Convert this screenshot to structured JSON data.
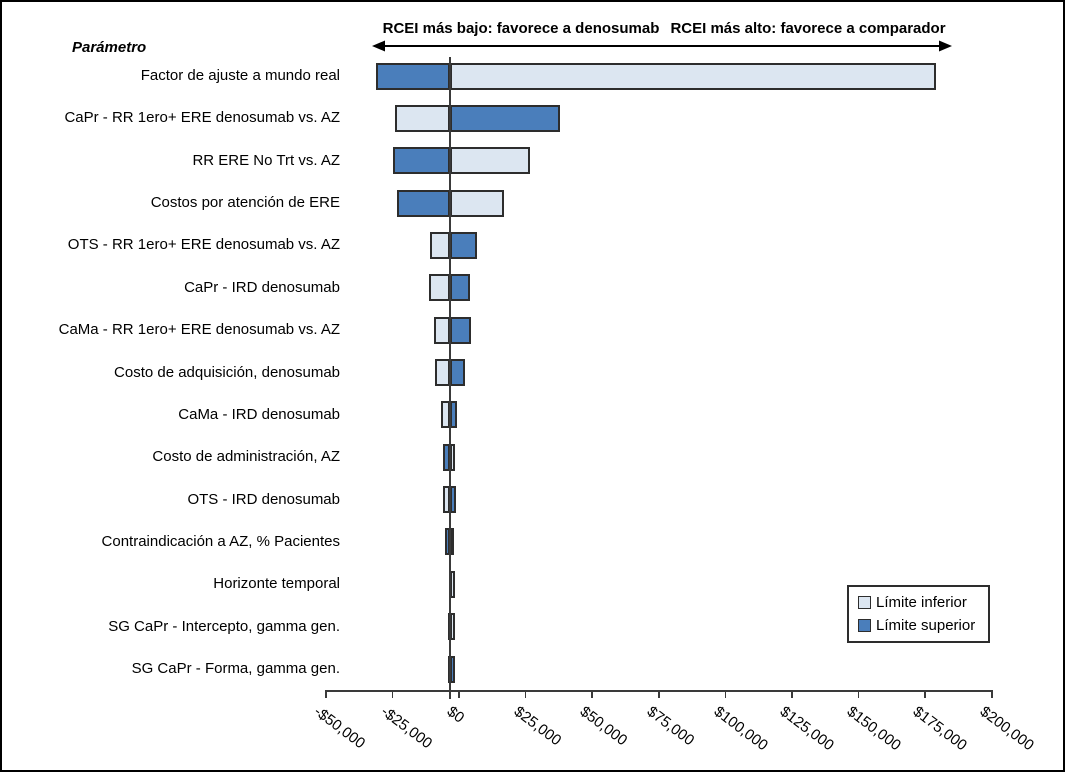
{
  "chart_data": {
    "type": "bar",
    "subtype": "tornado-sensitivity",
    "orientation": "horizontal",
    "param_header": "Parámetro",
    "axis_note_left": "RCEI más bajo: favorece a denosumab",
    "axis_note_right": "RCEI más alto: favorece a comparador",
    "baseline_value": -3400,
    "xlim": [
      -50000,
      200000
    ],
    "x_tick_step": 25000,
    "x_tick_labels": [
      "-$50,000",
      "-$25,000",
      "$0",
      "$25,000",
      "$50,000",
      "$75,000",
      "$100,000",
      "$125,000",
      "$150,000",
      "$175,000",
      "$200,000"
    ],
    "grid": false,
    "legend_position": "inside-bottom-right",
    "legend": [
      {
        "key": "limite_inferior",
        "label": "Límite inferior",
        "color": "#dce6f1"
      },
      {
        "key": "limite_superior",
        "label": "Límite superior",
        "color": "#4a7ebb"
      }
    ],
    "parameters": [
      {
        "label": "Factor de ajuste a mundo real",
        "limite_inferior": 179000,
        "limite_superior": -31200
      },
      {
        "label": "CaPr - RR 1ero+ ERE denosumab vs. AZ",
        "limite_inferior": -24000,
        "limite_superior": 37900
      },
      {
        "label": "RR ERE No Trt vs. AZ",
        "limite_inferior": 26700,
        "limite_superior": -24800
      },
      {
        "label": "Costos por atención de ERE",
        "limite_inferior": 16900,
        "limite_superior": -23300
      },
      {
        "label": "OTS - RR 1ero+ ERE denosumab vs. AZ",
        "limite_inferior": -10900,
        "limite_superior": 6800
      },
      {
        "label": "CaPr - IRD denosumab",
        "limite_inferior": -11300,
        "limite_superior": 4100
      },
      {
        "label": "CaMa - RR 1ero+ ERE denosumab vs. AZ",
        "limite_inferior": -9400,
        "limite_superior": 4500
      },
      {
        "label": "Costo de adquisición, denosumab",
        "limite_inferior": -9000,
        "limite_superior": 2300
      },
      {
        "label": "CaMa - IRD denosumab",
        "limite_inferior": -6800,
        "limite_superior": -800
      },
      {
        "label": "Costo de administración, AZ",
        "limite_inferior": -1500,
        "limite_superior": -6000
      },
      {
        "label": "OTS - IRD denosumab",
        "limite_inferior": -6000,
        "limite_superior": -1100
      },
      {
        "label": "Contraindicación a AZ, % Pacientes",
        "limite_inferior": -1900,
        "limite_superior": -5300
      },
      {
        "label": "Horizonte temporal",
        "limite_inferior": -1500,
        "limite_superior": -3900
      },
      {
        "label": "SG CaPr - Intercepto, gamma gen.",
        "limite_inferior": -1500,
        "limite_superior": -4100
      },
      {
        "label": "SG CaPr - Forma, gamma gen.",
        "limite_inferior": -4100,
        "limite_superior": -1600
      }
    ]
  }
}
